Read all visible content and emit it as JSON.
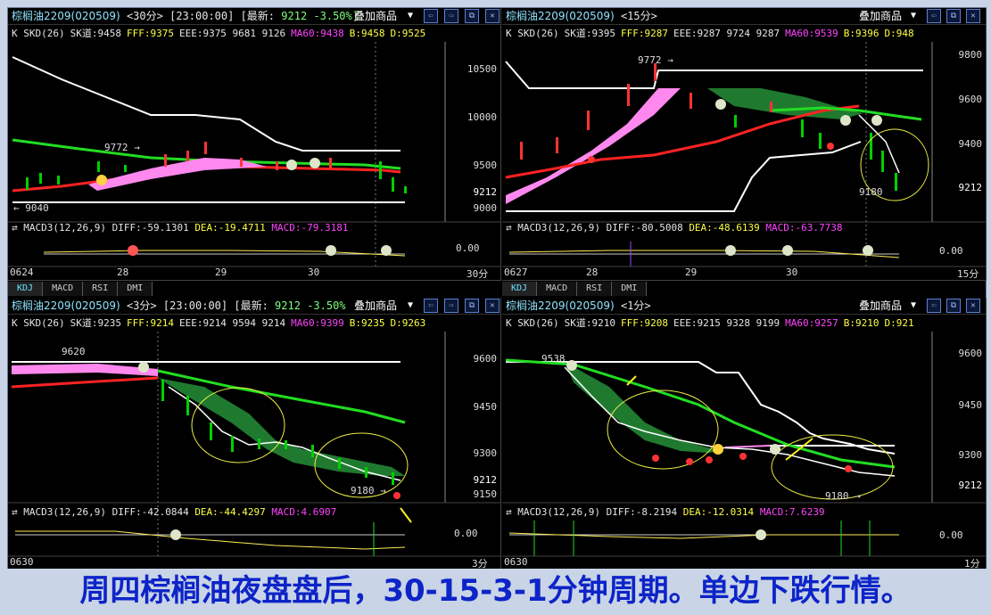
{
  "caption": "周四棕榈油夜盘盘后，30-15-3-1分钟周期。单边下跌行情。",
  "panels": [
    {
      "title": "棕榈油2209(020509)",
      "period": "<30分>",
      "time": "[23:00:00]",
      "last_label": "[最新:",
      "last_price": "9212",
      "change": "-3.50%]",
      "overlay": "叠加商品",
      "indicators": {
        "k": "K SKD(26)",
        "sk": "SK道:9458",
        "fff": "FFF:9375",
        "eee": "EEE:9375 9681 9126",
        "ma60": "MA60:9438",
        "b": "B:9458",
        "d": "D:9525"
      },
      "y_axis": [
        "10500",
        "10000",
        "9500",
        "9212",
        "9000"
      ],
      "price_labels": [
        "9772 →",
        "← 9040"
      ],
      "macd_label": "MACD3(12,26,9)",
      "diff": "DIFF:-59.1301",
      "dea": "DEA:-19.4711",
      "macd": "MACD:-79.3181",
      "macd_zero": "0.00",
      "x_axis": [
        "0624",
        "28",
        "29",
        "30",
        "30分"
      ]
    },
    {
      "title": "棕榈油2209(020509)",
      "period": "<15分>",
      "overlay": "叠加商品",
      "indicators": {
        "k": "K SKD(26)",
        "sk": "SK道:9395",
        "fff": "FFF:9287",
        "eee": "EEE:9287 9724 9287",
        "ma60": "MA60:9539",
        "b": "B:9396",
        "d": "D:948"
      },
      "y_axis": [
        "9800",
        "9600",
        "9400",
        "9212"
      ],
      "price_labels": [
        "9772 →",
        "9180"
      ],
      "macd_label": "MACD3(12,26,9)",
      "diff": "DIFF:-80.5008",
      "dea": "DEA:-48.6139",
      "macd": "MACD:-63.7738",
      "macd_zero": "0.00",
      "x_axis": [
        "0627",
        "28",
        "29",
        "30",
        "15分"
      ]
    },
    {
      "title": "棕榈油2209(020509)",
      "period": "<3分>",
      "time": "[23:00:00]",
      "last_label": "[最新:",
      "last_price": "9212",
      "change": "-3.50%",
      "overlay": "叠加商品",
      "indicators": {
        "k": "K SKD(26)",
        "sk": "SK道:9235",
        "fff": "FFF:9214",
        "eee": "EEE:9214 9594 9214",
        "ma60": "MA60:9399",
        "b": "B:9235",
        "d": "D:9263"
      },
      "y_axis": [
        "9600",
        "9450",
        "9300",
        "9212",
        "9150"
      ],
      "price_labels": [
        "9620",
        "9180 →"
      ],
      "macd_label": "MACD3(12,26,9)",
      "diff": "DIFF:-42.0844",
      "dea": "DEA:-44.4297",
      "macd": "MACD:4.6907",
      "macd_zero": "0.00",
      "x_axis": [
        "0630",
        "3分"
      ]
    },
    {
      "title": "棕榈油2209(020509)",
      "period": "<1分>",
      "overlay": "叠加商品",
      "indicators": {
        "k": "K SKD(26)",
        "sk": "SK道:9210",
        "fff": "FFF:9208",
        "eee": "EEE:9215 9328 9199",
        "ma60": "MA60:9257",
        "b": "B:9210",
        "d": "D:921"
      },
      "y_axis": [
        "9600",
        "9450",
        "9300",
        "9212"
      ],
      "price_labels": [
        "9180 →",
        "9538"
      ],
      "macd_label": "MACD3(12,26,9)",
      "diff": "DIFF:-8.2194",
      "dea": "DEA:-12.0314",
      "macd": "MACD:7.6239",
      "macd_zero": "0.00",
      "x_axis": [
        "0630",
        "1分"
      ]
    }
  ],
  "tabs": [
    "KDJ",
    "MACD",
    "RSI",
    "DMI"
  ],
  "colors": {
    "title_text": "#8fe3ff",
    "up": "#ff3333",
    "down": "#00d000",
    "ma60": "#22dd22",
    "band": "#ff88ee",
    "white_line": "#ffffff",
    "caption": "#0d24c8"
  }
}
